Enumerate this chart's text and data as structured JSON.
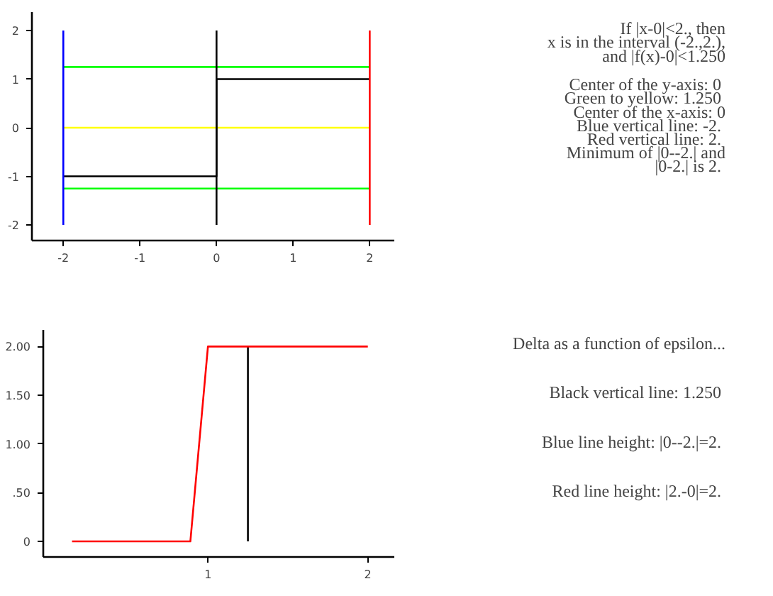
{
  "chart_data": [
    {
      "type": "line",
      "xlim": [
        -2.41,
        2.33
      ],
      "ylim": [
        -2.32,
        2.38
      ],
      "xticks": [
        -2,
        -1,
        0,
        1,
        2
      ],
      "yticks": [
        -2,
        -1,
        0,
        1,
        2
      ],
      "series": [
        {
          "color": "#ffff00",
          "x": [
            -2,
            2
          ],
          "values": [
            0,
            0
          ]
        },
        {
          "color": "#00ff00",
          "x": [
            -2,
            2
          ],
          "values": [
            1.25,
            1.25
          ]
        },
        {
          "color": "#00ff00",
          "x": [
            -2,
            2
          ],
          "values": [
            -1.25,
            -1.25
          ]
        },
        {
          "color": "#000000",
          "x": [
            -2,
            0,
            0,
            2
          ],
          "values": [
            -1,
            -1,
            1,
            1
          ]
        },
        {
          "color": "#000000",
          "x": [
            0,
            0
          ],
          "values": [
            -2,
            2
          ]
        },
        {
          "color": "#0000ff",
          "x": [
            -2,
            -2
          ],
          "values": [
            -2,
            2
          ]
        },
        {
          "color": "#ff0000",
          "x": [
            2,
            2
          ],
          "values": [
            -2,
            2
          ]
        }
      ],
      "annotations": [
        "If |x-0|<2., then\nx is in the interval (-2.,2.),\nand |f(x)-0|<1.250",
        "Center of the y-axis:  0\nGreen to yellow:  1.250\nCenter of the x-axis: 0\nBlue vertical line:  -2.\nRed vertical line:  2.\nMinimum of |0--2.| and\n|0-2.| is  2."
      ]
    },
    {
      "type": "line",
      "xlim": [
        -0.03,
        2.17
      ],
      "ylim": [
        -0.16,
        2.17
      ],
      "xticks": [
        1,
        2
      ],
      "yticks": [
        {
          "value": 0,
          "label": "0"
        },
        {
          "value": 0.5,
          "label": ".50"
        },
        {
          "value": 1,
          "label": "1.00"
        },
        {
          "value": 1.5,
          "label": "1.50"
        },
        {
          "value": 2,
          "label": "2.00"
        }
      ],
      "series": [
        {
          "color": "#000000",
          "x": [
            1.25,
            1.25
          ],
          "values": [
            0,
            2
          ]
        },
        {
          "color": "#ff0000",
          "x": [
            0.15,
            0.89,
            1.0,
            2
          ],
          "values": [
            0,
            0,
            2,
            2
          ]
        }
      ],
      "annotations": [
        "Delta as a function of epsilon...",
        "Black vertical line:  1.250",
        "Blue line height:  |0--2.|=2.",
        "Red line height:  |2.-0|=2."
      ]
    }
  ]
}
